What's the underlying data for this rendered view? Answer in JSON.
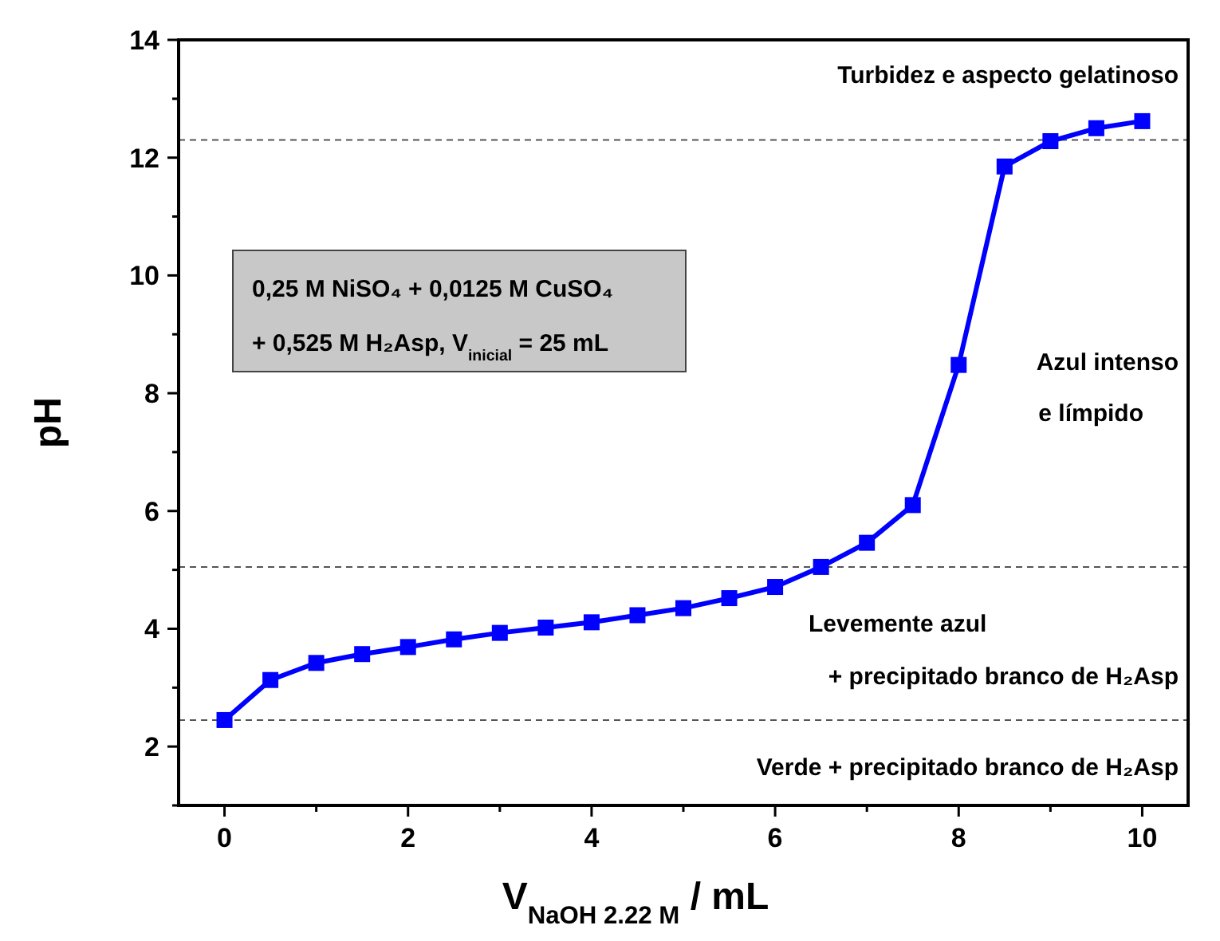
{
  "chart_data": {
    "type": "line",
    "xlabel": "V$_{NaOH 2.22 M}$ / mL",
    "ylabel": "pH",
    "x": [
      0,
      0.5,
      1,
      1.5,
      2,
      2.5,
      3,
      3.5,
      4,
      4.5,
      5,
      5.5,
      6,
      6.5,
      7,
      7.5,
      8,
      8.5,
      9,
      9.5,
      10
    ],
    "series": [
      {
        "color": "#0000ff",
        "values": [
          2.45,
          3.13,
          3.42,
          3.57,
          3.69,
          3.82,
          3.93,
          4.02,
          4.11,
          4.23,
          4.35,
          4.52,
          4.71,
          5.05,
          5.46,
          6.1,
          8.48,
          11.85,
          12.28,
          12.5,
          12.62
        ]
      }
    ],
    "xlim": [
      -0.5,
      10.5
    ],
    "ylim": [
      1,
      14
    ],
    "xticks": [
      0,
      {
        "value": 1,
        "label": null
      },
      2,
      {
        "value": 3,
        "label": null
      },
      4,
      {
        "value": 5,
        "label": null
      },
      6,
      {
        "value": 7,
        "label": null
      },
      8,
      {
        "value": 9,
        "label": null
      },
      10
    ],
    "yticks": [
      {
        "value": 1,
        "label": null
      },
      2,
      {
        "value": 3,
        "label": null
      },
      4,
      {
        "value": 5,
        "label": null
      },
      6,
      {
        "value": 7,
        "label": null
      },
      8,
      {
        "value": 9,
        "label": null
      },
      10,
      {
        "value": 11,
        "label": null
      },
      12,
      {
        "value": 13,
        "label": null
      },
      14
    ],
    "ref_lines": [
      {
        "axis": "y",
        "value": 12.3,
        "color": "#555555",
        "line_style": "dashed"
      },
      {
        "axis": "y",
        "value": 5.05,
        "color": "#555555",
        "line_style": "dashed"
      },
      {
        "axis": "y",
        "value": 2.45,
        "color": "#555555",
        "line_style": "dashed"
      }
    ],
    "annotations": [
      "0,25 M NiSO₄ + 0,0125 M CuSO₄",
      "+ 0,525 M H₂Asp, V$_{inicial}$ = 25 mL",
      "Turbidez e aspecto gelatinoso",
      "Azul intenso",
      "e  límpido",
      "Levemente azul",
      "+ precipitado branco de H₂Asp",
      "Verde + precipitado branco de H₂Asp"
    ],
    "marker": "square",
    "line_style": "solid"
  }
}
